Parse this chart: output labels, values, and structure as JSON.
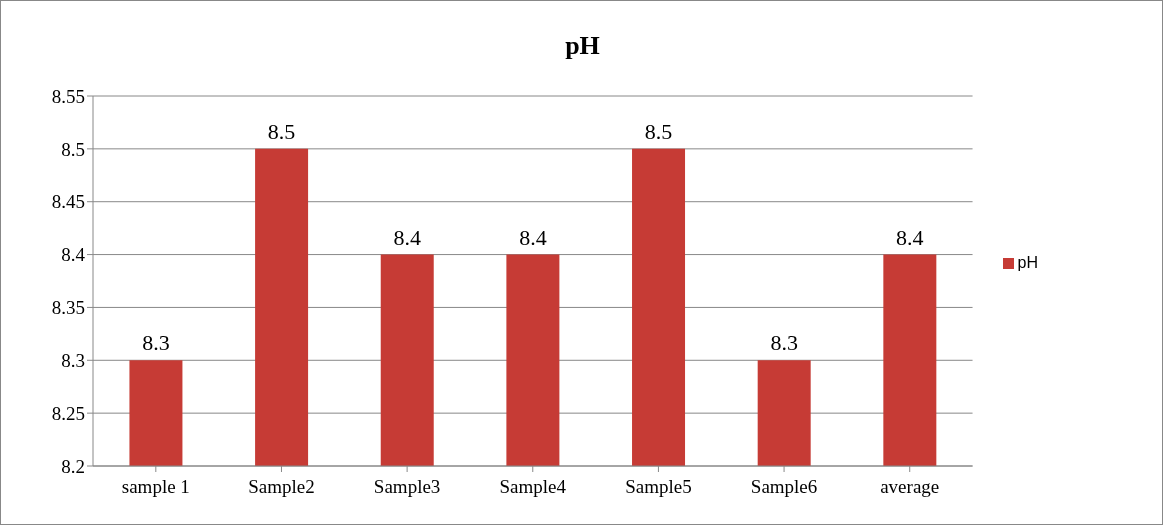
{
  "chart_data": {
    "type": "bar",
    "title": "pH",
    "categories": [
      "sample 1",
      "Sample2",
      "Sample3",
      "Sample4",
      "Sample5",
      "Sample6",
      "average"
    ],
    "series": [
      {
        "name": "pH",
        "color": "#c63b35",
        "values": [
          8.3,
          8.5,
          8.4,
          8.4,
          8.5,
          8.3,
          8.4
        ]
      }
    ],
    "ylim": [
      8.2,
      8.55
    ],
    "yticks": [
      8.2,
      8.25,
      8.3,
      8.35,
      8.4,
      8.45,
      8.5,
      8.55
    ],
    "grid": "y",
    "legend": "right",
    "data_labels": true
  }
}
